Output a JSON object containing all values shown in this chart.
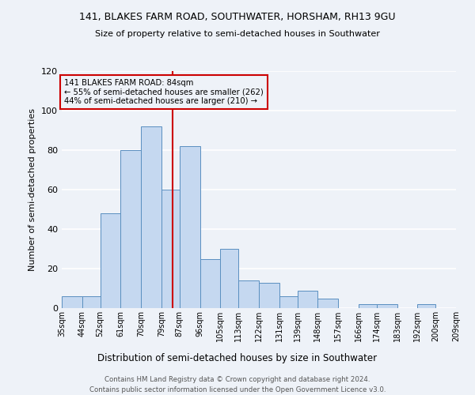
{
  "title1": "141, BLAKES FARM ROAD, SOUTHWATER, HORSHAM, RH13 9GU",
  "title2": "Size of property relative to semi-detached houses in Southwater",
  "xlabel": "Distribution of semi-detached houses by size in Southwater",
  "ylabel": "Number of semi-detached properties",
  "bin_labels": [
    "35sqm",
    "44sqm",
    "52sqm",
    "61sqm",
    "70sqm",
    "79sqm",
    "87sqm",
    "96sqm",
    "105sqm",
    "113sqm",
    "122sqm",
    "131sqm",
    "139sqm",
    "148sqm",
    "157sqm",
    "166sqm",
    "174sqm",
    "183sqm",
    "192sqm",
    "200sqm",
    "209sqm"
  ],
  "bin_edges": [
    35,
    44,
    52,
    61,
    70,
    79,
    87,
    96,
    105,
    113,
    122,
    131,
    139,
    148,
    157,
    166,
    174,
    183,
    192,
    200,
    209
  ],
  "bar_heights": [
    6,
    6,
    48,
    80,
    92,
    60,
    82,
    25,
    30,
    14,
    13,
    6,
    9,
    5,
    0,
    2,
    2,
    0,
    2,
    0
  ],
  "bar_color": "#c5d8f0",
  "bar_edge_color": "#5a8fc0",
  "vline_x": 84,
  "vline_color": "#cc0000",
  "annotation_title": "141 BLAKES FARM ROAD: 84sqm",
  "annotation_line1": "← 55% of semi-detached houses are smaller (262)",
  "annotation_line2": "44% of semi-detached houses are larger (210) →",
  "annotation_box_color": "#cc0000",
  "ylim": [
    0,
    120
  ],
  "yticks": [
    0,
    20,
    40,
    60,
    80,
    100,
    120
  ],
  "footer1": "Contains HM Land Registry data © Crown copyright and database right 2024.",
  "footer2": "Contains public sector information licensed under the Open Government Licence v3.0.",
  "background_color": "#eef2f8"
}
